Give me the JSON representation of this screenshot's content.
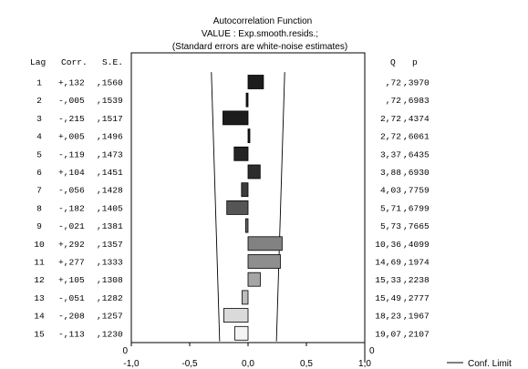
{
  "chart_data": {
    "type": "bar",
    "title": "Autocorrelation Function",
    "subtitle": "VALUE   : Exp.smooth.resids.;",
    "note": "(Standard errors are white-noise estimates)",
    "headers": {
      "lag": "Lag",
      "corr": "Corr.",
      "se": "S.E.",
      "q": "Q",
      "p": "p"
    },
    "lags": [
      "1",
      "2",
      "3",
      "4",
      "5",
      "6",
      "7",
      "8",
      "9",
      "10",
      "11",
      "12",
      "13",
      "14",
      "15"
    ],
    "corr_text": [
      "+,132",
      "-,005",
      "-,215",
      "+,005",
      "-,119",
      "+,104",
      "-,056",
      "-,182",
      "-,021",
      "+,292",
      "+,277",
      "+,105",
      "-,051",
      "-,208",
      "-,113"
    ],
    "se_text": [
      ",1560",
      ",1539",
      ",1517",
      ",1496",
      ",1473",
      ",1451",
      ",1428",
      ",1405",
      ",1381",
      ",1357",
      ",1333",
      ",1308",
      ",1282",
      ",1257",
      ",1230"
    ],
    "q_text": [
      ",72",
      ",72",
      "2,72",
      "2,72",
      "3,37",
      "3,88",
      "4,03",
      "5,71",
      "5,73",
      "10,36",
      "14,69",
      "15,33",
      "15,49",
      "18,23",
      "19,07"
    ],
    "p_text": [
      ",3970",
      ",6983",
      ",4374",
      ",6061",
      ",6435",
      ",6930",
      ",7759",
      ",6799",
      ",7665",
      ",4099",
      ",1974",
      ",2238",
      ",2777",
      ",1967",
      ",2107"
    ],
    "values": [
      0.132,
      -0.005,
      -0.215,
      0.005,
      -0.119,
      0.104,
      -0.056,
      -0.182,
      -0.021,
      0.292,
      0.277,
      0.105,
      -0.051,
      -0.208,
      -0.113
    ],
    "se": [
      0.156,
      0.1539,
      0.1517,
      0.1496,
      0.1473,
      0.1451,
      0.1428,
      0.1405,
      0.1381,
      0.1357,
      0.1333,
      0.1308,
      0.1282,
      0.1257,
      0.123
    ],
    "bar_colors": [
      "#1c1c1c",
      "#1c1c1c",
      "#1c1c1c",
      "#1c1c1c",
      "#242424",
      "#2c2c2c",
      "#3c3c3c",
      "#555555",
      "#666666",
      "#828282",
      "#8e8e8e",
      "#a5a5a5",
      "#bdbdbd",
      "#dadada",
      "#f4f4f4"
    ],
    "xlim": [
      -1.0,
      1.0
    ],
    "xticks": [
      -1.0,
      -0.5,
      0.0,
      0.5,
      1.0
    ],
    "xtick_labels": [
      "-1,0",
      "-0,5",
      "0,0",
      "0,5",
      "1,0"
    ],
    "y_extra_label": "0",
    "legend": {
      "label": "Conf. Limit",
      "position": "bottom-right"
    }
  }
}
